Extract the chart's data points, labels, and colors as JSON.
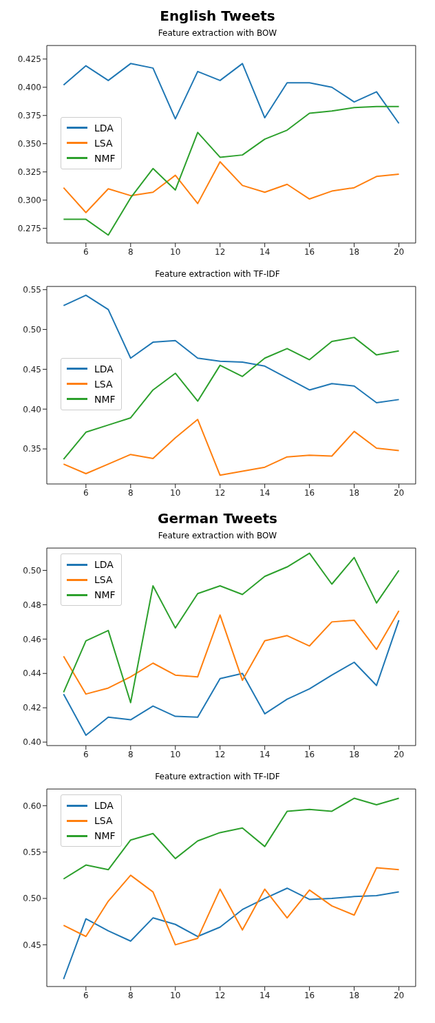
{
  "chart_data": [
    {
      "type": "line",
      "title": "English Tweets",
      "subtitle": "Feature extraction with BOW",
      "x": [
        5,
        6,
        7,
        8,
        9,
        10,
        11,
        12,
        13,
        14,
        15,
        16,
        17,
        18,
        19,
        20
      ],
      "xlim": [
        4.25,
        20.75
      ],
      "xticks": [
        6,
        8,
        10,
        12,
        14,
        16,
        18,
        20
      ],
      "ylim": [
        0.262,
        0.437
      ],
      "yticks": [
        0.275,
        {
          "value": 0.3,
          "label": "0.300"
        },
        0.325,
        {
          "value": 0.35,
          "label": "0.350"
        },
        0.375,
        {
          "value": 0.4,
          "label": "0.400"
        },
        0.425
      ],
      "grid": false,
      "legend": "center left",
      "line_style": "solid",
      "marker": "none",
      "series": [
        {
          "name": "LDA",
          "color": "#1f77b4",
          "values": [
            0.402,
            0.419,
            0.406,
            0.421,
            0.417,
            0.372,
            0.414,
            0.406,
            0.421,
            0.373,
            0.404,
            0.404,
            0.4,
            0.387,
            0.396,
            0.368
          ]
        },
        {
          "name": "LSA",
          "color": "#ff7f0e",
          "values": [
            0.311,
            0.289,
            0.31,
            0.304,
            0.307,
            0.322,
            0.297,
            0.334,
            0.313,
            0.307,
            0.314,
            0.301,
            0.308,
            0.311,
            0.321,
            0.323
          ]
        },
        {
          "name": "NMF",
          "color": "#2ca02c",
          "values": [
            0.283,
            0.283,
            0.269,
            0.302,
            0.328,
            0.309,
            0.36,
            0.338,
            0.34,
            0.354,
            0.362,
            0.377,
            0.379,
            0.382,
            0.383,
            0.383
          ]
        }
      ]
    },
    {
      "type": "line",
      "subtitle": "Feature extraction with TF-IDF",
      "x": [
        5,
        6,
        7,
        8,
        9,
        10,
        11,
        12,
        13,
        14,
        15,
        16,
        17,
        18,
        19,
        20
      ],
      "xlim": [
        4.25,
        20.75
      ],
      "xticks": [
        6,
        8,
        10,
        12,
        14,
        16,
        18,
        20
      ],
      "ylim": [
        0.306,
        0.554
      ],
      "yticks": [
        0.35,
        {
          "value": 0.4,
          "label": "0.40"
        },
        0.45,
        {
          "value": 0.5,
          "label": "0.50"
        },
        0.55
      ],
      "grid": false,
      "legend": "center left",
      "line_style": "solid",
      "marker": "none",
      "series": [
        {
          "name": "LDA",
          "color": "#1f77b4",
          "values": [
            0.53,
            0.543,
            0.525,
            0.464,
            0.484,
            0.486,
            0.464,
            0.46,
            0.459,
            0.454,
            0.439,
            0.424,
            0.432,
            0.429,
            0.408,
            0.412
          ]
        },
        {
          "name": "LSA",
          "color": "#ff7f0e",
          "values": [
            0.331,
            0.319,
            0.331,
            0.343,
            0.338,
            0.364,
            0.387,
            0.317,
            0.322,
            0.327,
            0.34,
            0.342,
            0.341,
            0.372,
            0.351,
            0.348
          ]
        },
        {
          "name": "NMF",
          "color": "#2ca02c",
          "values": [
            0.337,
            0.371,
            0.38,
            0.389,
            0.424,
            0.445,
            0.41,
            0.455,
            0.441,
            0.464,
            0.476,
            0.462,
            0.485,
            0.49,
            0.468,
            0.473
          ]
        }
      ]
    },
    {
      "type": "line",
      "title": "German Tweets",
      "subtitle": "Feature extraction with BOW",
      "x": [
        5,
        6,
        7,
        8,
        9,
        10,
        11,
        12,
        13,
        14,
        15,
        16,
        17,
        18,
        19,
        20
      ],
      "xlim": [
        4.25,
        20.75
      ],
      "xticks": [
        6,
        8,
        10,
        12,
        14,
        16,
        18,
        20
      ],
      "ylim": [
        0.398,
        0.513
      ],
      "yticks": [
        {
          "value": 0.4,
          "label": "0.40"
        },
        0.42,
        0.44,
        0.46,
        0.48,
        {
          "value": 0.5,
          "label": "0.50"
        }
      ],
      "grid": false,
      "legend": "top left",
      "line_style": "solid",
      "marker": "none",
      "series": [
        {
          "name": "LDA",
          "color": "#1f77b4",
          "values": [
            0.428,
            0.404,
            0.4145,
            0.413,
            0.421,
            0.415,
            0.4145,
            0.437,
            0.44,
            0.4165,
            0.425,
            0.431,
            0.439,
            0.4465,
            0.433,
            0.471
          ]
        },
        {
          "name": "LSA",
          "color": "#ff7f0e",
          "values": [
            0.45,
            0.428,
            0.4315,
            0.438,
            0.446,
            0.439,
            0.438,
            0.474,
            0.436,
            0.459,
            0.462,
            0.456,
            0.47,
            0.471,
            0.454,
            0.4765
          ]
        },
        {
          "name": "NMF",
          "color": "#2ca02c",
          "values": [
            0.429,
            0.459,
            0.465,
            0.423,
            0.491,
            0.4665,
            0.4865,
            0.491,
            0.486,
            0.4965,
            0.502,
            0.51,
            0.492,
            0.5075,
            0.481,
            0.5
          ]
        }
      ]
    },
    {
      "type": "line",
      "subtitle": "Feature extraction with TF-IDF",
      "x": [
        5,
        6,
        7,
        8,
        9,
        10,
        11,
        12,
        13,
        14,
        15,
        16,
        17,
        18,
        19,
        20
      ],
      "xlim": [
        4.25,
        20.75
      ],
      "xticks": [
        6,
        8,
        10,
        12,
        14,
        16,
        18,
        20
      ],
      "ylim": [
        0.405,
        0.618
      ],
      "yticks": [
        0.45,
        {
          "value": 0.5,
          "label": "0.50"
        },
        0.55,
        {
          "value": 0.6,
          "label": "0.60"
        }
      ],
      "grid": false,
      "legend": "top left",
      "line_style": "solid",
      "marker": "none",
      "series": [
        {
          "name": "LDA",
          "color": "#1f77b4",
          "values": [
            0.413,
            0.478,
            0.465,
            0.454,
            0.479,
            0.472,
            0.459,
            0.469,
            0.488,
            0.5,
            0.511,
            0.499,
            0.5,
            0.502,
            0.503,
            0.507
          ]
        },
        {
          "name": "LSA",
          "color": "#ff7f0e",
          "values": [
            0.471,
            0.459,
            0.497,
            0.525,
            0.507,
            0.45,
            0.457,
            0.51,
            0.466,
            0.51,
            0.479,
            0.509,
            0.492,
            0.482,
            0.533,
            0.531
          ]
        },
        {
          "name": "NMF",
          "color": "#2ca02c",
          "values": [
            0.521,
            0.536,
            0.531,
            0.563,
            0.57,
            0.543,
            0.562,
            0.571,
            0.576,
            0.556,
            0.594,
            0.596,
            0.594,
            0.608,
            0.601,
            0.608
          ]
        }
      ]
    }
  ]
}
